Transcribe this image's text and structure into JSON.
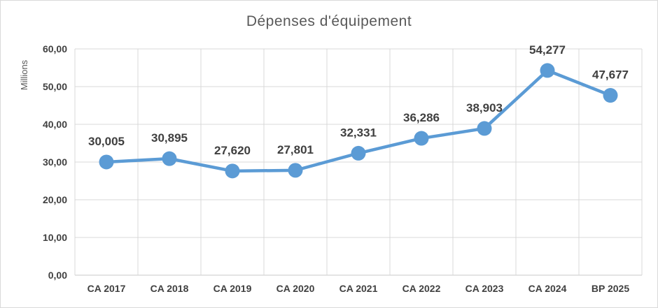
{
  "chart": {
    "background": "#FFFFFF",
    "border_color": "#D9D9D9"
  },
  "chart_data": {
    "type": "line",
    "title": "Dépenses d'équipement",
    "axis_unit_label": "Millions",
    "categories": [
      "CA 2017",
      "CA 2018",
      "CA 2019",
      "CA 2020",
      "CA 2021",
      "CA 2022",
      "CA 2023",
      "CA 2024",
      "BP 2025"
    ],
    "series": [
      {
        "name": "Dépenses d'équipement",
        "values": [
          30.005,
          30.895,
          27.62,
          27.801,
          32.331,
          36.286,
          38.903,
          54.277,
          47.677
        ],
        "data_labels": [
          "30,005",
          "30,895",
          "27,620",
          "27,801",
          "32,331",
          "36,286",
          "38,903",
          "54,277",
          "47,677"
        ],
        "color": "#5B9BD5",
        "marker": "circle"
      }
    ],
    "ylim": [
      0,
      60
    ],
    "ytick_labels": [
      "0,00",
      "10,00",
      "20,00",
      "30,00",
      "40,00",
      "50,00",
      "60,00"
    ],
    "xlabel": "",
    "ylabel": "",
    "grid": true,
    "legend": "none",
    "colors": {
      "gridline": "#D9D9D9",
      "axis_line": "#C9C9C9",
      "axis_text": "#404040",
      "title_text": "#595959",
      "data_label_text": "#3F3F3F"
    }
  }
}
